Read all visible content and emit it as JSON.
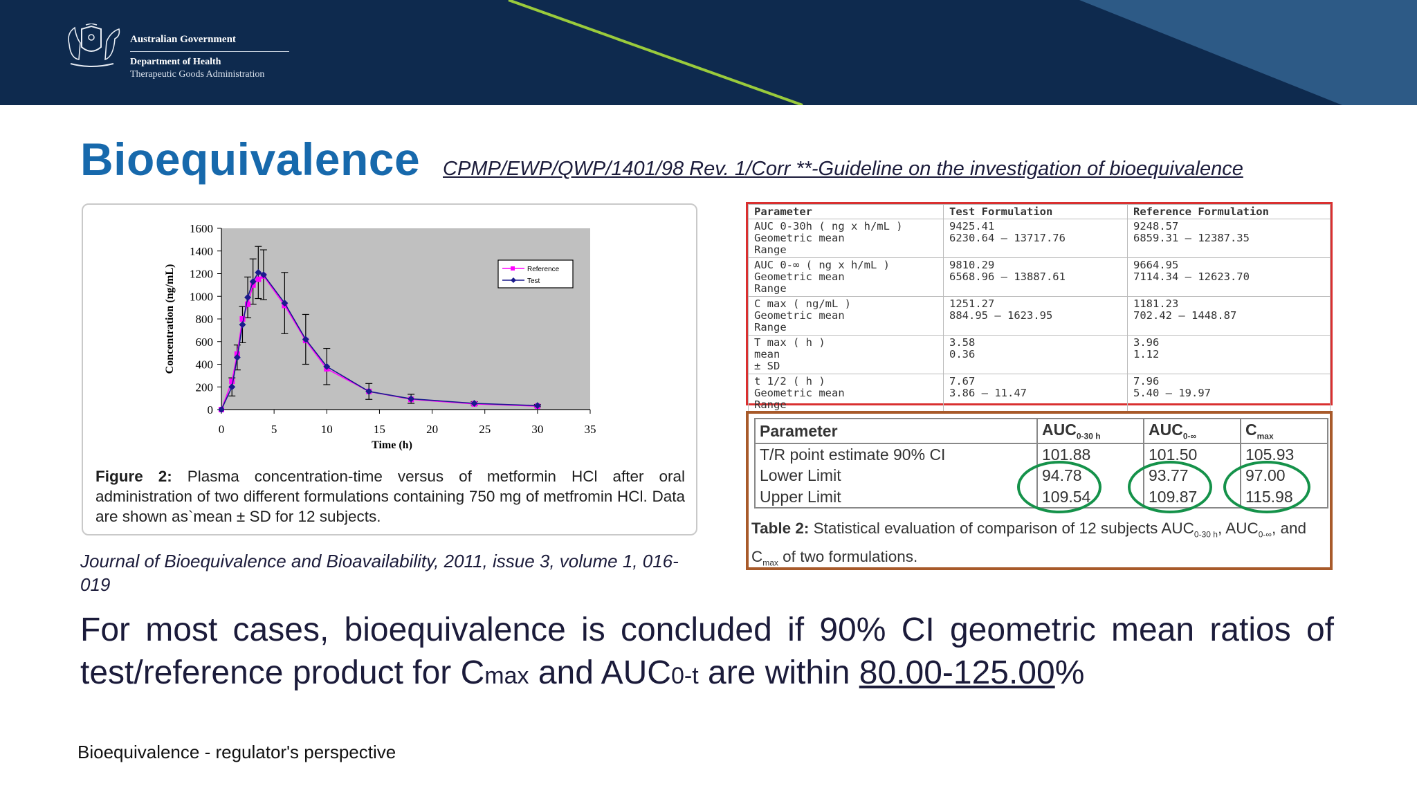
{
  "header": {
    "logo_line1": "Australian Government",
    "logo_line2": "Department of Health",
    "logo_line3": "Therapeutic Goods Administration",
    "colors": {
      "background": "#0e2a4e",
      "accent_line": "#9acb3c",
      "band": "#2d5a86"
    }
  },
  "title": "Bioequivalence",
  "guideline_link": "CPMP/EWP/QWP/1401/98 Rev. 1/Corr **-Guideline on the investigation of bioequivalence",
  "figure": {
    "caption_label": "Figure 2:",
    "caption_text": " Plasma concentration-time versus of metformin HCl after oral administration of two different formulations containing 750 mg of metfromin HCl. Data are shown as`mean ± SD for 12 subjects."
  },
  "journal_ref": "Journal of Bioequivalence and Bioavailability, 2011, issue 3, volume 1, 016-019",
  "chart_data": {
    "type": "line",
    "xlabel": "Time (h)",
    "ylabel": "Concentration (ng/mL)",
    "xlim": [
      0,
      35
    ],
    "ylim": [
      0,
      1600
    ],
    "x_ticks": [
      0,
      5,
      10,
      15,
      20,
      25,
      30,
      35
    ],
    "y_ticks": [
      0,
      200,
      400,
      600,
      800,
      1000,
      1200,
      1400,
      1600
    ],
    "grid": false,
    "legend_position": "top-right",
    "plot_background": "#c0c0c0",
    "x": [
      0,
      1,
      1.5,
      2,
      2.5,
      3,
      3.5,
      4,
      6,
      8,
      10,
      14,
      18,
      24,
      30
    ],
    "series": [
      {
        "name": "Reference",
        "color": "#ff00ff",
        "marker": "square",
        "values": [
          0,
          250,
          490,
          800,
          930,
          1100,
          1150,
          1180,
          920,
          610,
          360,
          160,
          90,
          50,
          30
        ]
      },
      {
        "name": "Test",
        "color": "#1a1a8c",
        "marker": "diamond",
        "values": [
          0,
          200,
          460,
          750,
          990,
          1130,
          1210,
          1190,
          940,
          620,
          380,
          160,
          95,
          55,
          35
        ],
        "error": [
          0,
          80,
          110,
          160,
          180,
          200,
          230,
          220,
          270,
          220,
          160,
          70,
          40,
          15,
          10
        ]
      }
    ]
  },
  "table1": {
    "headers": [
      "Parameter",
      "Test Formulation",
      "Reference Formulation"
    ],
    "rows": [
      {
        "param": [
          "AUC 0-30h ( ng x h/mL )",
          "Geometric mean",
          "Range"
        ],
        "test": [
          "9425.41",
          "6230.64 – 13717.76"
        ],
        "ref": [
          "9248.57",
          "6859.31 – 12387.35"
        ]
      },
      {
        "param": [
          "AUC 0-∞ ( ng x h/mL )",
          "Geometric mean",
          "Range"
        ],
        "test": [
          "9810.29",
          "6568.96 – 13887.61"
        ],
        "ref": [
          "9664.95",
          "7114.34 – 12623.70"
        ]
      },
      {
        "param": [
          "C max ( ng/mL )",
          "Geometric mean",
          "Range"
        ],
        "test": [
          "1251.27",
          "884.95 – 1623.95"
        ],
        "ref": [
          "1181.23",
          "702.42 – 1448.87"
        ]
      },
      {
        "param": [
          "T max ( h )",
          "mean",
          "± SD"
        ],
        "test": [
          "3.58",
          "0.36"
        ],
        "ref": [
          "3.96",
          "1.12"
        ]
      },
      {
        "param": [
          "t 1/2 ( h )",
          "Geometric mean",
          "Range"
        ],
        "test": [
          "7.67",
          "3.86 – 11.47"
        ],
        "ref": [
          "7.96",
          "5.40 – 19.97"
        ]
      }
    ]
  },
  "table2": {
    "headers": {
      "param": "Parameter",
      "auc_t": "AUC",
      "auc_t_sub": "0-30 h",
      "auc_inf": "AUC",
      "auc_inf_sub": "0-∞",
      "cmax": "C",
      "cmax_sub": "max"
    },
    "rows": [
      {
        "label": "T/R point estimate 90% CI",
        "auc_t": "101.88",
        "auc_inf": "101.50",
        "cmax": "105.93"
      },
      {
        "label": "Lower Limit",
        "auc_t": "94.78",
        "auc_inf": "93.77",
        "cmax": "97.00"
      },
      {
        "label": "Upper Limit",
        "auc_t": "109.54",
        "auc_inf": "109.87",
        "cmax": "115.98"
      }
    ],
    "caption_label": "Table 2:",
    "caption_1": " Statistical evaluation of comparison of 12 subjects AUC",
    "caption_sub1": "0-30 h",
    "caption_2": ", AUC",
    "caption_sub2": "0-∞",
    "caption_3": ", and C",
    "caption_sub3": "max",
    "caption_4": " of two formulations.",
    "highlight_color": "#15924a"
  },
  "statement": {
    "part1": "For most cases, bioequivalence is concluded if 90% CI  geometric mean ratios of test/reference product for C",
    "sub1": "max",
    "part2": " and AUC",
    "sub2": "0-t",
    "part3": " are within ",
    "range": "80.00-125.00",
    "part4": "%"
  },
  "footer": "Bioequivalence - regulator's perspective"
}
